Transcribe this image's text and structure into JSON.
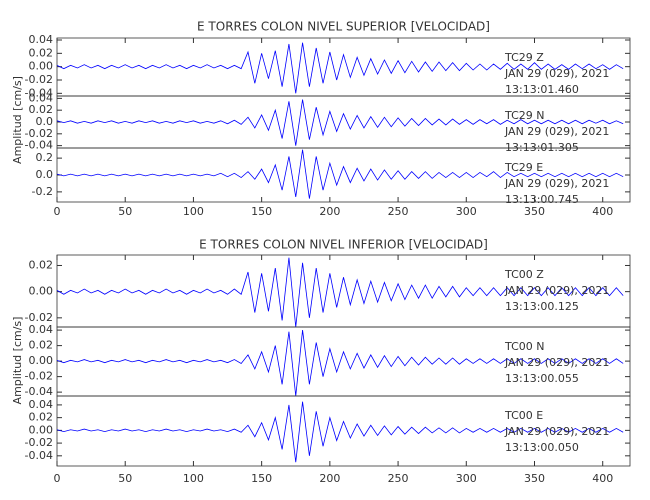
{
  "chart_data": [
    {
      "type": "line",
      "title": "E TORRES COLON NIVEL SUPERIOR [VELOCIDAD]",
      "ylabel": "Amplitud [cm/s]",
      "xlim": [
        0,
        420
      ],
      "xticks": [
        0,
        50,
        100,
        150,
        200,
        250,
        300,
        350,
        400
      ],
      "x": [
        0,
        5,
        10,
        15,
        20,
        25,
        30,
        35,
        40,
        45,
        50,
        55,
        60,
        65,
        70,
        75,
        80,
        85,
        90,
        95,
        100,
        105,
        110,
        115,
        120,
        125,
        130,
        135,
        140,
        145,
        150,
        155,
        160,
        165,
        170,
        175,
        180,
        185,
        190,
        195,
        200,
        205,
        210,
        215,
        220,
        225,
        230,
        235,
        240,
        245,
        250,
        255,
        260,
        265,
        270,
        275,
        280,
        285,
        290,
        295,
        300,
        305,
        310,
        315,
        320,
        325,
        330,
        335,
        340,
        345,
        350,
        355,
        360,
        365,
        370,
        375,
        380,
        385,
        390,
        395,
        400,
        405,
        410,
        415
      ],
      "panels": [
        {
          "annotations": [
            "TC29   Z",
            "JAN 29 (029), 2021",
            "13:13:01.460"
          ],
          "color": "#0000ff",
          "ylim": [
            -0.044,
            0.043
          ],
          "yticks": [
            {
              "value": 0.04,
              "label": "0.04"
            },
            {
              "value": 0.02,
              "label": "0.02"
            },
            {
              "value": 0,
              "label": "0.00"
            },
            {
              "value": -0.02,
              "label": "-0.02"
            },
            {
              "value": -0.04,
              "label": "-0.04"
            }
          ],
          "values": [
            0.002,
            -0.003,
            0.002,
            -0.002,
            0.003,
            -0.002,
            0.002,
            -0.003,
            0.002,
            -0.002,
            0.003,
            -0.002,
            0.002,
            -0.003,
            0.002,
            -0.002,
            0.003,
            -0.002,
            0.002,
            -0.003,
            0.002,
            -0.002,
            0.003,
            -0.002,
            0.002,
            -0.003,
            0.002,
            -0.003,
            0.022,
            -0.025,
            0.02,
            -0.018,
            0.024,
            -0.03,
            0.034,
            -0.04,
            0.036,
            -0.03,
            0.028,
            -0.025,
            0.022,
            -0.02,
            0.018,
            -0.016,
            0.014,
            -0.013,
            0.012,
            -0.011,
            0.01,
            -0.01,
            0.009,
            -0.009,
            0.008,
            -0.008,
            0.007,
            -0.007,
            0.007,
            -0.006,
            0.006,
            -0.006,
            0.005,
            -0.005,
            0.004,
            -0.005,
            0.004,
            -0.004,
            0.005,
            -0.004,
            0.004,
            -0.004,
            0.006,
            -0.004,
            0.004,
            -0.004,
            0.003,
            -0.004,
            0.004,
            -0.003,
            0.004,
            -0.003,
            0.003,
            -0.004,
            0.003,
            -0.003
          ]
        },
        {
          "annotations": [
            "TC29   N",
            "JAN 29 (029), 2021",
            "13:13:01.305"
          ],
          "color": "#0000ff",
          "ylim": [
            -0.044,
            0.044
          ],
          "yticks": [
            {
              "value": 0.04,
              "label": "0.04"
            },
            {
              "value": 0.02,
              "label": "0.02"
            },
            {
              "value": 0,
              "label": "0.0"
            },
            {
              "value": -0.02,
              "label": "-0.02"
            },
            {
              "value": -0.04,
              "label": "-0.04"
            }
          ],
          "values": [
            0.002,
            -0.001,
            0.002,
            -0.002,
            0.001,
            -0.002,
            0.002,
            -0.001,
            0.002,
            -0.002,
            0.001,
            -0.002,
            0.002,
            -0.001,
            0.002,
            -0.002,
            0.001,
            -0.002,
            0.002,
            -0.001,
            0.002,
            -0.002,
            0.001,
            -0.002,
            0.002,
            -0.003,
            0.003,
            -0.004,
            0.008,
            -0.01,
            0.012,
            -0.014,
            0.02,
            -0.028,
            0.035,
            -0.04,
            0.038,
            -0.03,
            0.025,
            -0.022,
            0.018,
            -0.016,
            0.014,
            -0.012,
            0.011,
            -0.01,
            0.009,
            -0.009,
            0.008,
            -0.008,
            0.007,
            -0.007,
            0.006,
            -0.006,
            0.006,
            -0.005,
            0.005,
            -0.005,
            0.005,
            -0.004,
            0.004,
            -0.004,
            0.004,
            -0.003,
            0.004,
            -0.004,
            0.003,
            -0.003,
            0.004,
            -0.003,
            0.003,
            -0.003,
            0.003,
            -0.003,
            0.003,
            -0.003,
            0.003,
            -0.003,
            0.003,
            -0.002,
            0.003,
            -0.003,
            0.002,
            -0.003
          ]
        },
        {
          "annotations": [
            "TC29   E",
            "JAN 29 (029), 2021",
            "13:13:00.745"
          ],
          "color": "#0000ff",
          "ylim": [
            -0.32,
            0.32
          ],
          "yticks": [
            {
              "value": 0.2,
              "label": "0.2"
            },
            {
              "value": 0,
              "label": "0.0"
            },
            {
              "value": -0.2,
              "label": "-0.2"
            }
          ],
          "values": [
            0.01,
            -0.01,
            0.01,
            -0.01,
            0.01,
            -0.01,
            0.01,
            -0.01,
            0.01,
            -0.01,
            0.01,
            -0.01,
            0.01,
            -0.01,
            0.01,
            -0.01,
            0.01,
            -0.01,
            0.01,
            -0.01,
            0.01,
            -0.01,
            0.01,
            -0.01,
            0.02,
            -0.02,
            0.02,
            -0.03,
            0.04,
            -0.05,
            0.07,
            -0.09,
            0.12,
            -0.18,
            0.22,
            -0.26,
            0.3,
            -0.28,
            0.22,
            -0.18,
            0.14,
            -0.12,
            0.1,
            -0.09,
            0.08,
            -0.07,
            0.07,
            -0.06,
            0.06,
            -0.05,
            0.05,
            -0.05,
            0.04,
            -0.04,
            0.04,
            -0.04,
            0.03,
            -0.03,
            0.03,
            -0.03,
            0.03,
            -0.03,
            0.03,
            -0.02,
            0.04,
            -0.03,
            0.03,
            -0.02,
            0.02,
            -0.02,
            0.02,
            -0.02,
            0.02,
            -0.02,
            0.02,
            -0.02,
            0.02,
            -0.02,
            0.02,
            -0.02,
            0.02,
            -0.02,
            0.02,
            -0.02
          ]
        }
      ]
    },
    {
      "type": "line",
      "title": "E TORRES COLON NIVEL INFERIOR [VELOCIDAD]",
      "ylabel": "Amplitud [cm/s]",
      "xlim": [
        0,
        420
      ],
      "xticks": [
        0,
        50,
        100,
        150,
        200,
        250,
        300,
        350,
        400
      ],
      "x": [
        0,
        5,
        10,
        15,
        20,
        25,
        30,
        35,
        40,
        45,
        50,
        55,
        60,
        65,
        70,
        75,
        80,
        85,
        90,
        95,
        100,
        105,
        110,
        115,
        120,
        125,
        130,
        135,
        140,
        145,
        150,
        155,
        160,
        165,
        170,
        175,
        180,
        185,
        190,
        195,
        200,
        205,
        210,
        215,
        220,
        225,
        230,
        235,
        240,
        245,
        250,
        255,
        260,
        265,
        270,
        275,
        280,
        285,
        290,
        295,
        300,
        305,
        310,
        315,
        320,
        325,
        330,
        335,
        340,
        345,
        350,
        355,
        360,
        365,
        370,
        375,
        380,
        385,
        390,
        395,
        400,
        405,
        410,
        415
      ],
      "panels": [
        {
          "annotations": [
            "TC00   Z",
            "JAN 29 (029), 2021",
            "13:13:00.125"
          ],
          "color": "#0000ff",
          "ylim": [
            -0.027,
            0.028
          ],
          "yticks": [
            {
              "value": 0.02,
              "label": "0.02"
            },
            {
              "value": 0,
              "label": "0.00"
            },
            {
              "value": -0.02,
              "label": "-0.02"
            }
          ],
          "values": [
            0.001,
            -0.002,
            0.001,
            -0.001,
            0.002,
            -0.001,
            0.001,
            -0.002,
            0.001,
            -0.001,
            0.002,
            -0.001,
            0.001,
            -0.002,
            0.001,
            -0.001,
            0.002,
            -0.001,
            0.001,
            -0.002,
            0.001,
            -0.001,
            0.002,
            -0.001,
            0.001,
            -0.002,
            0.002,
            -0.002,
            0.015,
            -0.016,
            0.014,
            -0.015,
            0.018,
            -0.022,
            0.026,
            -0.027,
            0.022,
            -0.02,
            0.018,
            -0.016,
            0.014,
            -0.012,
            0.011,
            -0.01,
            0.009,
            -0.009,
            0.008,
            -0.008,
            0.007,
            -0.007,
            0.006,
            -0.006,
            0.005,
            -0.005,
            0.005,
            -0.005,
            0.004,
            -0.004,
            0.004,
            -0.004,
            0.003,
            -0.003,
            0.003,
            -0.003,
            0.003,
            -0.003,
            0.003,
            -0.003,
            0.003,
            -0.003,
            0.003,
            -0.003,
            0.003,
            -0.003,
            0.003,
            -0.003,
            0.003,
            -0.003,
            0.003,
            -0.003,
            0.003,
            -0.003,
            0.003,
            -0.003
          ]
        },
        {
          "annotations": [
            "TC00   N",
            "JAN 29 (029), 2021",
            "13:13:00.055"
          ],
          "color": "#0000ff",
          "ylim": [
            -0.045,
            0.044
          ],
          "yticks": [
            {
              "value": 0.04,
              "label": "0.04"
            },
            {
              "value": 0.02,
              "label": "0.02"
            },
            {
              "value": 0,
              "label": "0.00"
            },
            {
              "value": -0.02,
              "label": "-0.02"
            },
            {
              "value": -0.04,
              "label": "-0.04"
            }
          ],
          "values": [
            0.001,
            -0.002,
            0.001,
            -0.001,
            0.002,
            -0.001,
            0.001,
            -0.002,
            0.001,
            -0.001,
            0.002,
            -0.001,
            0.001,
            -0.002,
            0.001,
            -0.001,
            0.002,
            -0.001,
            0.001,
            -0.002,
            0.001,
            -0.001,
            0.002,
            -0.001,
            0.001,
            -0.002,
            0.002,
            -0.003,
            0.008,
            -0.01,
            0.012,
            -0.014,
            0.02,
            -0.03,
            0.038,
            -0.045,
            0.04,
            -0.03,
            0.024,
            -0.02,
            0.016,
            -0.014,
            0.012,
            -0.01,
            0.01,
            -0.009,
            0.008,
            -0.008,
            0.007,
            -0.007,
            0.006,
            -0.006,
            0.005,
            -0.005,
            0.005,
            -0.004,
            0.004,
            -0.004,
            0.004,
            -0.004,
            0.003,
            -0.003,
            0.003,
            -0.003,
            0.003,
            -0.003,
            0.003,
            -0.003,
            0.003,
            -0.003,
            0.003,
            -0.003,
            0.003,
            -0.003,
            0.003,
            -0.003,
            0.003,
            -0.003,
            0.003,
            -0.003,
            0.003,
            -0.003,
            0.003,
            -0.003
          ]
        },
        {
          "annotations": [
            "TC00   E",
            "JAN 29 (029), 2021",
            "13:13:00.050"
          ],
          "color": "#0000ff",
          "ylim": [
            -0.056,
            0.054
          ],
          "yticks": [
            {
              "value": 0.04,
              "label": "0.04"
            },
            {
              "value": 0.02,
              "label": "0.02"
            },
            {
              "value": 0,
              "label": "0.00"
            },
            {
              "value": -0.02,
              "label": "-0.02"
            },
            {
              "value": -0.04,
              "label": "-0.04"
            }
          ],
          "values": [
            0.001,
            -0.002,
            0.001,
            -0.001,
            0.002,
            -0.001,
            0.001,
            -0.002,
            0.001,
            -0.001,
            0.002,
            -0.001,
            0.001,
            -0.002,
            0.001,
            -0.001,
            0.002,
            -0.001,
            0.001,
            -0.002,
            0.001,
            -0.001,
            0.002,
            -0.001,
            0.001,
            -0.002,
            0.002,
            -0.003,
            0.008,
            -0.01,
            0.012,
            -0.015,
            0.02,
            -0.03,
            0.04,
            -0.05,
            0.045,
            -0.04,
            0.03,
            -0.025,
            0.02,
            -0.016,
            0.014,
            -0.012,
            0.01,
            -0.009,
            0.008,
            -0.008,
            0.007,
            -0.007,
            0.006,
            -0.006,
            0.005,
            -0.005,
            0.005,
            -0.004,
            0.004,
            -0.004,
            0.004,
            -0.004,
            0.003,
            -0.003,
            0.003,
            -0.003,
            0.003,
            -0.003,
            0.003,
            -0.003,
            0.003,
            -0.003,
            0.003,
            -0.003,
            0.003,
            -0.003,
            0.003,
            -0.003,
            0.003,
            -0.003,
            0.003,
            -0.003,
            0.003,
            -0.003,
            0.003,
            -0.003
          ]
        }
      ]
    }
  ]
}
